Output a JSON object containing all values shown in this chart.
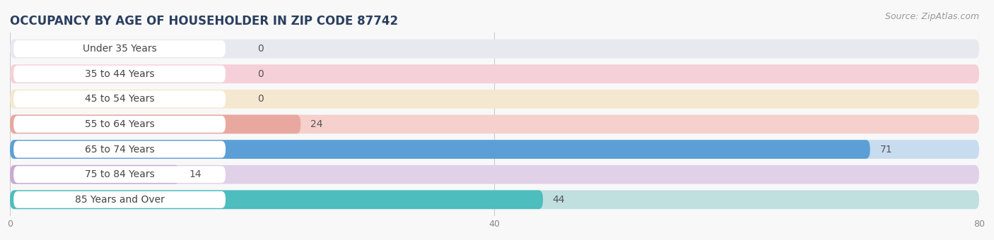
{
  "title": "OCCUPANCY BY AGE OF HOUSEHOLDER IN ZIP CODE 87742",
  "source": "Source: ZipAtlas.com",
  "categories": [
    "Under 35 Years",
    "35 to 44 Years",
    "45 to 54 Years",
    "55 to 64 Years",
    "65 to 74 Years",
    "75 to 84 Years",
    "85 Years and Over"
  ],
  "values": [
    0,
    0,
    0,
    24,
    71,
    14,
    44
  ],
  "bar_colors": [
    "#b0aedd",
    "#f5a8bb",
    "#f7cb94",
    "#e8a8a0",
    "#5b9fd6",
    "#c8aad4",
    "#4dbdbd"
  ],
  "row_light_colors": [
    "#e8e8f0",
    "#f5d0d8",
    "#f5e8d0",
    "#f5d0cc",
    "#c8dcf0",
    "#e0d0e8",
    "#c0e0e0"
  ],
  "xlim": [
    0,
    80
  ],
  "xticks": [
    0,
    40,
    80
  ],
  "title_fontsize": 12,
  "source_fontsize": 9,
  "label_fontsize": 10,
  "value_fontsize": 10,
  "background_color": "#f8f8f8",
  "bar_height": 0.75,
  "title_color": "#2a3f5f",
  "label_color": "#444444",
  "value_color": "#555555",
  "tick_color": "#888888"
}
